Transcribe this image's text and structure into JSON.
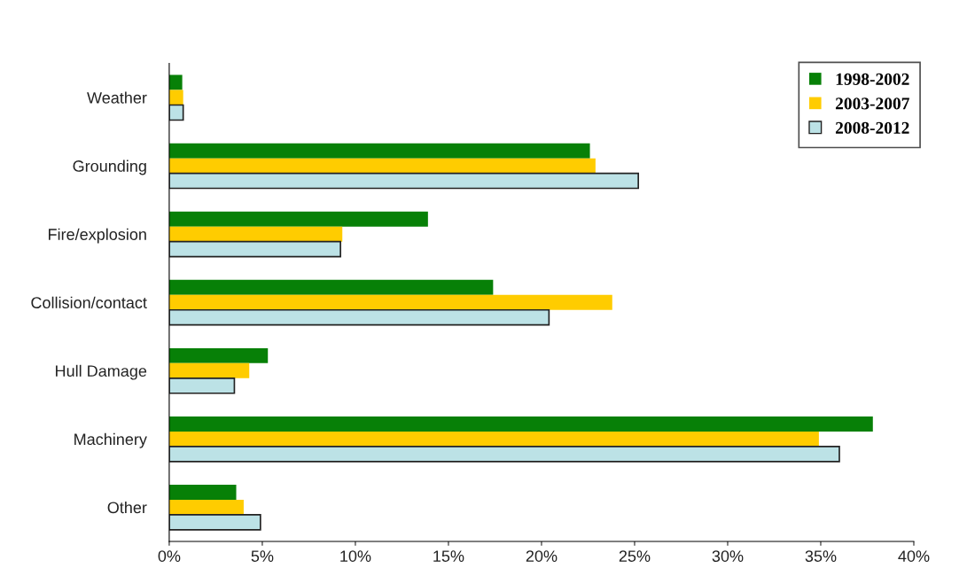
{
  "chart_data": {
    "type": "bar",
    "orientation": "horizontal",
    "categories": [
      "Weather",
      "Grounding",
      "Fire/explosion",
      "Collision/contact",
      "Hull Damage",
      "Machinery",
      "Other"
    ],
    "series": [
      {
        "name": "1998-2002",
        "color": "#078007",
        "values": [
          0.7,
          22.6,
          13.9,
          17.4,
          5.3,
          37.8,
          3.6
        ]
      },
      {
        "name": "2003-2007",
        "color": "#ffcc00",
        "values": [
          0.75,
          22.9,
          9.3,
          23.8,
          4.3,
          34.9,
          4.0
        ]
      },
      {
        "name": "2008-2012",
        "color": "#bce2e6",
        "values": [
          0.75,
          25.2,
          9.2,
          20.4,
          3.5,
          36.0,
          4.9
        ]
      }
    ],
    "xlim": [
      0,
      40
    ],
    "xticks": [
      {
        "value": 0,
        "label": "0%"
      },
      {
        "value": 5,
        "label": "5%"
      },
      {
        "value": 10,
        "label": "10%"
      },
      {
        "value": 15,
        "label": "15%"
      },
      {
        "value": 20,
        "label": "20%"
      },
      {
        "value": 25,
        "label": "25%"
      },
      {
        "value": 30,
        "label": "30%"
      },
      {
        "value": 35,
        "label": "35%"
      },
      {
        "value": 40,
        "label": "40%"
      }
    ],
    "legend": "top right",
    "grid": false
  }
}
